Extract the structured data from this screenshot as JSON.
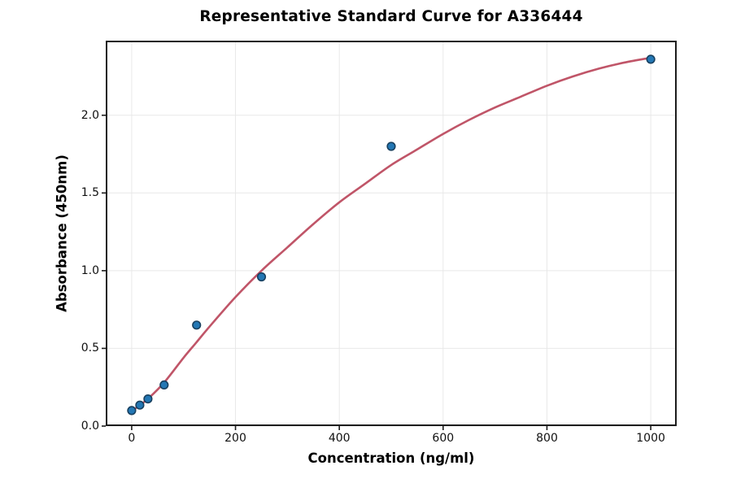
{
  "figure": {
    "title": "Representative Standard Curve for A336444"
  },
  "chart_data": {
    "type": "scatter",
    "title": "Representative Standard Curve for A336444",
    "xlabel": "Concentration (ng/ml)",
    "ylabel": "Absorbance (450nm)",
    "xlim": [
      -50,
      1050
    ],
    "ylim": [
      0,
      2.48
    ],
    "grid": true,
    "legend": "none",
    "x_ticks": [
      0,
      200,
      400,
      600,
      800,
      1000
    ],
    "x_tick_labels": [
      "0",
      "200",
      "400",
      "600",
      "800",
      "1000"
    ],
    "y_ticks": [
      0.0,
      0.5,
      1.0,
      1.5,
      2.0
    ],
    "y_tick_labels": [
      "0.0",
      "0.5",
      "1.0",
      "1.5",
      "2.0"
    ],
    "points": {
      "x": [
        0,
        15.6,
        31.25,
        62.5,
        125,
        250,
        500,
        1000
      ],
      "y": [
        0.1,
        0.135,
        0.175,
        0.265,
        0.65,
        0.96,
        1.8,
        2.36
      ]
    },
    "fit_curve": [
      [
        0,
        0.095
      ],
      [
        15.6,
        0.135
      ],
      [
        31.25,
        0.175
      ],
      [
        62.5,
        0.28
      ],
      [
        100,
        0.44
      ],
      [
        125,
        0.54
      ],
      [
        150,
        0.64
      ],
      [
        200,
        0.83
      ],
      [
        250,
        1.0
      ],
      [
        300,
        1.15
      ],
      [
        350,
        1.3
      ],
      [
        400,
        1.44
      ],
      [
        450,
        1.56
      ],
      [
        500,
        1.68
      ],
      [
        550,
        1.78
      ],
      [
        600,
        1.88
      ],
      [
        650,
        1.97
      ],
      [
        700,
        2.05
      ],
      [
        750,
        2.12
      ],
      [
        800,
        2.19
      ],
      [
        850,
        2.25
      ],
      [
        900,
        2.3
      ],
      [
        950,
        2.34
      ],
      [
        1000,
        2.37
      ]
    ],
    "colors": {
      "curve": "#c05568",
      "marker_fill": "#2377b4",
      "marker_edge": "#18405f",
      "grid": "#e8e8e8",
      "spine": "#1c1c1c",
      "text": "#000000",
      "background": "#ffffff"
    }
  }
}
